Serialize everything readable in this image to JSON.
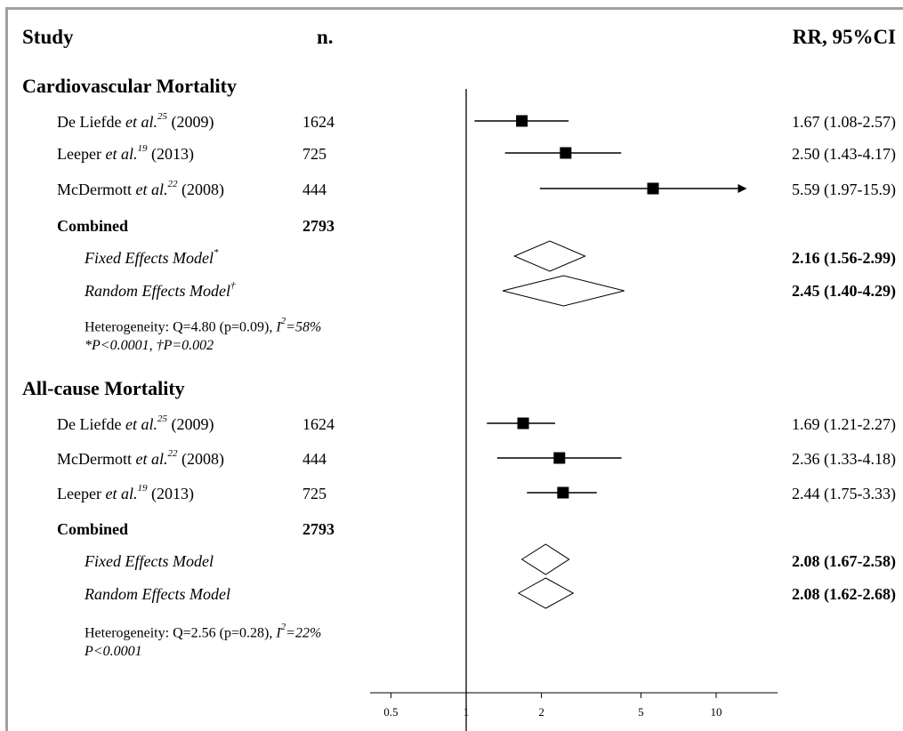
{
  "header": {
    "study": "Study",
    "n": "n.",
    "rr": "RR, 95%CI"
  },
  "chart_data": {
    "type": "forest",
    "xscale": "log",
    "xlim": [
      0.4,
      15
    ],
    "xticks": [
      0.5,
      1,
      2,
      5,
      10
    ],
    "xtick_labels": [
      "0.5",
      "1",
      "2",
      "5",
      "10"
    ],
    "reference_line": 1,
    "sections": [
      {
        "title": "Cardiovascular Mortality",
        "studies": [
          {
            "author": "De Liefde",
            "etal": "et al.",
            "ref": "25",
            "year": "(2009)",
            "n": "1624",
            "rr": 1.67,
            "lo": 1.08,
            "hi": 2.57,
            "label": "1.67 (1.08-2.57)",
            "arrow": false
          },
          {
            "author": "Leeper",
            "etal": "et al.",
            "ref": "19",
            "year": "(2013)",
            "n": "725",
            "rr": 2.5,
            "lo": 1.43,
            "hi": 4.17,
            "label": "2.50 (1.43-4.17)",
            "arrow": false
          },
          {
            "author": "McDermott",
            "etal": "et al.",
            "ref": "22",
            "year": "(2008)",
            "n": "444",
            "rr": 5.59,
            "lo": 1.97,
            "hi": 15.9,
            "label": "5.59 (1.97-15.9)",
            "arrow": true
          }
        ],
        "combined_label": "Combined",
        "combined_n": "2793",
        "models": [
          {
            "name": "Fixed Effects Model",
            "mark": "*",
            "rr": 2.16,
            "lo": 1.56,
            "hi": 2.99,
            "label": "2.16 (1.56-2.99)"
          },
          {
            "name": "Random Effects Model",
            "mark": "†",
            "rr": 2.45,
            "lo": 1.4,
            "hi": 4.29,
            "label": "2.45 (1.40-4.29)"
          }
        ],
        "heterogeneity_prefix": "Heterogeneity: Q=4.80 (p=0.09), ",
        "heterogeneity_i2_i": "I",
        "heterogeneity_i2_sup": "2",
        "heterogeneity_i2_rest": "=58%",
        "pvalue": "*P<0.0001, †P=0.002"
      },
      {
        "title": "All-cause Mortality",
        "studies": [
          {
            "author": "De Liefde",
            "etal": "et al.",
            "ref": "25",
            "year": "(2009)",
            "n": "1624",
            "rr": 1.69,
            "lo": 1.21,
            "hi": 2.27,
            "label": "1.69 (1.21-2.27)",
            "arrow": false
          },
          {
            "author": "McDermott",
            "etal": "et al.",
            "ref": "22",
            "year": "(2008)",
            "n": "444",
            "rr": 2.36,
            "lo": 1.33,
            "hi": 4.18,
            "label": "2.36 (1.33-4.18)",
            "arrow": false
          },
          {
            "author": "Leeper",
            "etal": "et al.",
            "ref": "19",
            "year": "(2013)",
            "n": "725",
            "rr": 2.44,
            "lo": 1.75,
            "hi": 3.33,
            "label": "2.44 (1.75-3.33)",
            "arrow": false
          }
        ],
        "combined_label": "Combined",
        "combined_n": "2793",
        "models": [
          {
            "name": "Fixed Effects Model",
            "mark": "",
            "rr": 2.08,
            "lo": 1.67,
            "hi": 2.58,
            "label": "2.08 (1.67-2.58)"
          },
          {
            "name": "Random Effects Model",
            "mark": "",
            "rr": 2.08,
            "lo": 1.62,
            "hi": 2.68,
            "label": "2.08 (1.62-2.68)"
          }
        ],
        "heterogeneity_prefix": "Heterogeneity: Q=2.56 (p=0.28), ",
        "heterogeneity_i2_i": "I",
        "heterogeneity_i2_sup": "2",
        "heterogeneity_i2_rest": "=22%",
        "pvalue": "P<0.0001"
      }
    ]
  }
}
